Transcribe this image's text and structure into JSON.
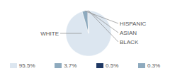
{
  "chart_data": {
    "type": "pie",
    "categories": [
      "WHITE",
      "HISPANIC",
      "ASIAN",
      "BLACK"
    ],
    "values": [
      95.5,
      3.7,
      0.5,
      0.3
    ],
    "value_labels": [
      "95.5%",
      "3.7%",
      "0.5%",
      "0.3%"
    ],
    "colors": [
      "#dce6f0",
      "#8eaabe",
      "#1f3864",
      "#8eaabe"
    ],
    "legend": "bottom"
  }
}
